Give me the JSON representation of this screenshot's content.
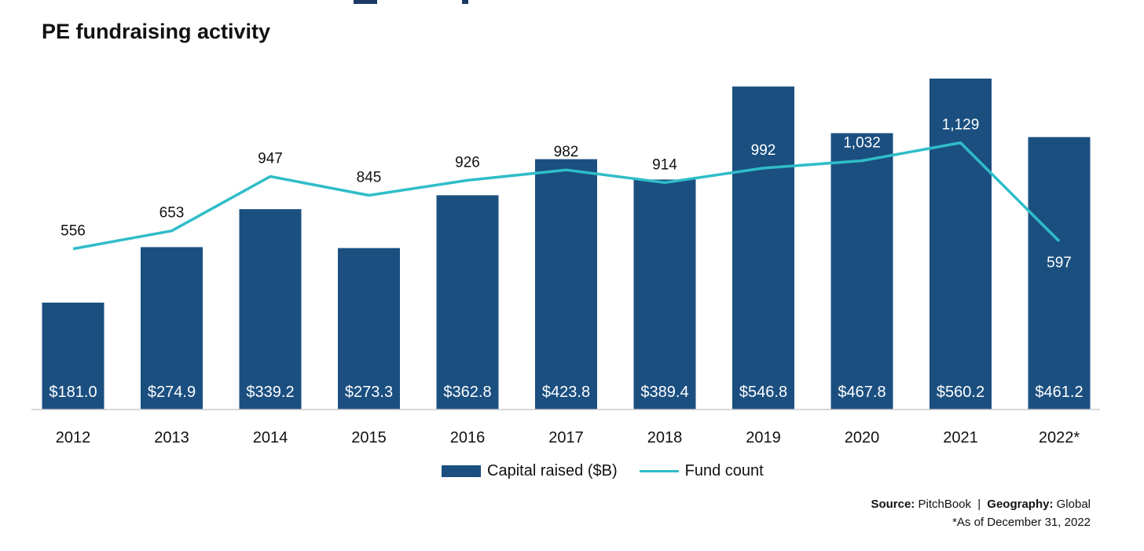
{
  "title": "PE fundraising activity",
  "colors": {
    "bar": "#1b4f80",
    "line": "#2fbdc8",
    "text": "#111111"
  },
  "chart_data": {
    "type": "bar",
    "title": "PE fundraising activity",
    "categories": [
      "2012",
      "2013",
      "2014",
      "2015",
      "2016",
      "2017",
      "2018",
      "2019",
      "2020",
      "2021",
      "2022*"
    ],
    "series": [
      {
        "name": "Capital raised ($B)",
        "type": "bar",
        "values": [
          181.0,
          274.9,
          339.2,
          273.3,
          362.8,
          423.8,
          389.4,
          546.8,
          467.8,
          560.2,
          461.2
        ],
        "labels": [
          "$181.0",
          "$274.9",
          "$339.2",
          "$273.3",
          "$362.8",
          "$423.8",
          "$389.4",
          "$546.8",
          "$467.8",
          "$560.2",
          "$461.2"
        ]
      },
      {
        "name": "Fund count",
        "type": "line",
        "values": [
          556,
          653,
          947,
          845,
          926,
          982,
          914,
          992,
          1032,
          1129,
          597
        ],
        "labels": [
          "556",
          "653",
          "947",
          "845",
          "926",
          "982",
          "914",
          "992",
          "1,032",
          "1,129",
          "597"
        ]
      }
    ],
    "xlabel": "",
    "ylabel": "",
    "grid": false,
    "legend": "bottom"
  },
  "source": {
    "source_label": "Source:",
    "source_value": "PitchBook",
    "separator": "|",
    "geo_label": "Geography:",
    "geo_value": "Global"
  },
  "footnote": "*As of December 31, 2022"
}
